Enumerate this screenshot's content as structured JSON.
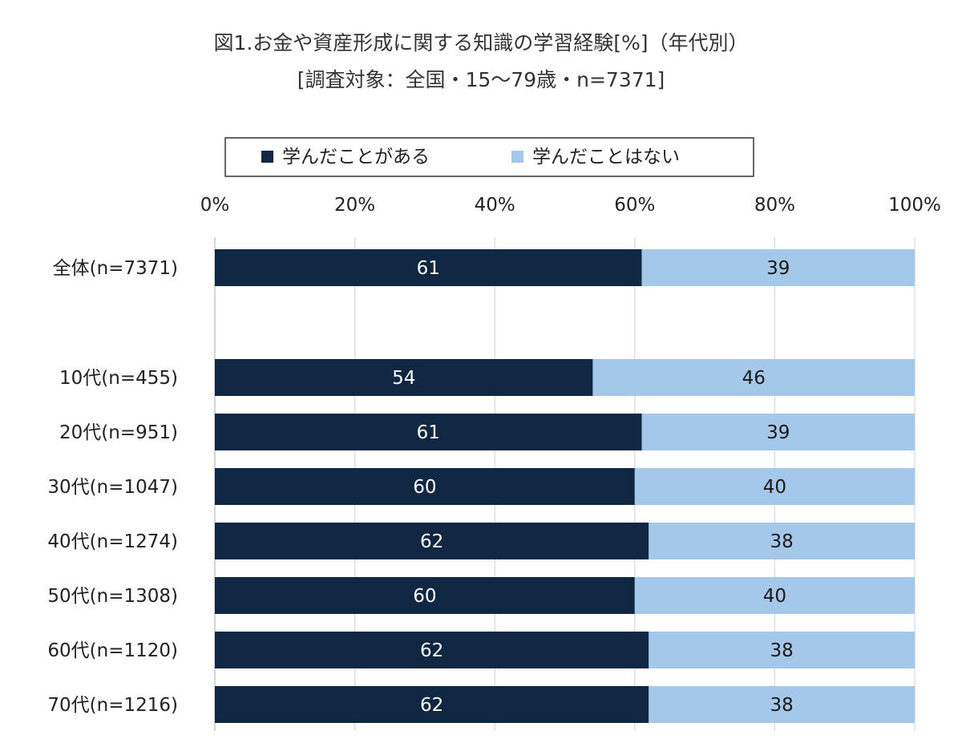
{
  "chart_data": {
    "type": "bar",
    "orientation": "horizontal",
    "stacked": true,
    "title": "図1.お金や資産形成に関する知識の学習経験[%]（年代別）",
    "subtitle": "[調査対象：全国・15～79歳・n=7371]",
    "categories": [
      "全体(n=7371)",
      "10代(n=455)",
      "20代(n=951)",
      "30代(n=1047)",
      "40代(n=1274)",
      "50代(n=1308)",
      "60代(n=1120)",
      "70代(n=1216)"
    ],
    "series": [
      {
        "name": "学んだことがある",
        "values": [
          61,
          54,
          61,
          60,
          62,
          60,
          62,
          62
        ],
        "color": "#0f2742"
      },
      {
        "name": "学んだことはない",
        "values": [
          39,
          46,
          39,
          40,
          38,
          40,
          38,
          38
        ],
        "color": "#a5c8ea"
      }
    ],
    "xlim": [
      0,
      100
    ],
    "x_ticks": [
      "0%",
      "20%",
      "40%",
      "60%",
      "80%",
      "100%"
    ],
    "grid": true,
    "legend_position": "top"
  }
}
